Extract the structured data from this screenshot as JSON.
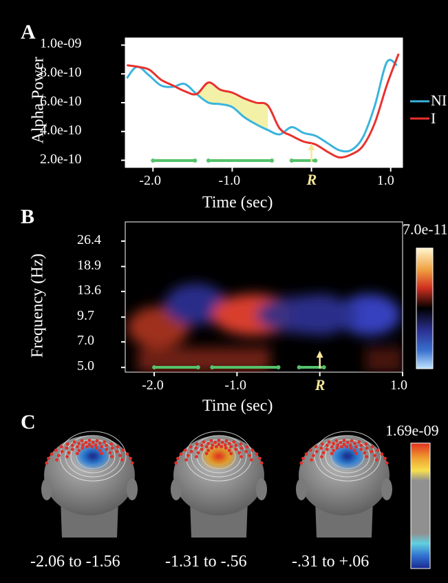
{
  "panel_labels": {
    "a": "A",
    "b": "B",
    "c": "C"
  },
  "r_marker": "R",
  "chart_data": [
    {
      "type": "line",
      "panel": "A",
      "ylabel": "Alpha Power",
      "xlabel": "Time (sec)",
      "ylim": [
        1.5e-10,
        1.05e-09
      ],
      "xlim": [
        -2.35,
        1.15
      ],
      "yticks": [
        "1.0e-09",
        "8.0e-10",
        "6.0e-10",
        "4.0e-10",
        "2.0e-10"
      ],
      "ytick_values": [
        1e-09,
        8e-10,
        6e-10,
        4e-10,
        2e-10
      ],
      "xticks": [
        "-2.0",
        "-1.0",
        "R",
        "1.0"
      ],
      "xtick_values": [
        -2.0,
        -1.0,
        0.0,
        1.0
      ],
      "legend_position": "right",
      "series": [
        {
          "name": "NI",
          "color": "#3ab4dd",
          "x": [
            -2.33,
            -2.2,
            -2.05,
            -1.9,
            -1.75,
            -1.6,
            -1.45,
            -1.3,
            -1.15,
            -1.0,
            -0.85,
            -0.7,
            -0.55,
            -0.4,
            -0.25,
            -0.1,
            0.05,
            0.2,
            0.35,
            0.5,
            0.65,
            0.8,
            0.95,
            1.08
          ],
          "y": [
            7.7e-10,
            8.5e-10,
            7.9e-10,
            7.2e-10,
            7.1e-10,
            7.3e-10,
            6.6e-10,
            6e-10,
            5.9e-10,
            5.7e-10,
            5e-10,
            4.5e-10,
            4.1e-10,
            3.8e-10,
            4.3e-10,
            3.9e-10,
            3.7e-10,
            3.2e-10,
            2.7e-10,
            2.7e-10,
            3.6e-10,
            5.8e-10,
            8.8e-10,
            8.6e-10
          ]
        },
        {
          "name": "I",
          "color": "#e8312d",
          "x": [
            -2.33,
            -2.2,
            -2.05,
            -1.9,
            -1.75,
            -1.6,
            -1.45,
            -1.3,
            -1.15,
            -1.0,
            -0.85,
            -0.7,
            -0.55,
            -0.4,
            -0.25,
            -0.1,
            0.05,
            0.2,
            0.35,
            0.5,
            0.65,
            0.8,
            0.95,
            1.1
          ],
          "y": [
            8.6e-10,
            8.5e-10,
            8.3e-10,
            7.6e-10,
            7.2e-10,
            6.8e-10,
            6.6e-10,
            7.4e-10,
            6.9e-10,
            6.7e-10,
            6.3e-10,
            6e-10,
            5.8e-10,
            4.2e-10,
            3.7e-10,
            3.3e-10,
            3.1e-10,
            2.6e-10,
            2.2e-10,
            2.4e-10,
            3e-10,
            4.6e-10,
            7.2e-10,
            9.4e-10
          ]
        }
      ],
      "highlight_intervals": [
        [
          -2.0,
          -1.47
        ],
        [
          -1.3,
          -0.5
        ],
        [
          -0.25,
          0.05
        ]
      ]
    },
    {
      "type": "heatmap",
      "panel": "B",
      "ylabel": "Frequency (Hz)",
      "xlabel": "Time (sec)",
      "yticks": [
        "26.4",
        "18.9",
        "13.6",
        "9.7",
        "7.0",
        "5.0"
      ],
      "xticks": [
        "-2.0",
        "-1.0",
        "R",
        "1.0"
      ],
      "colorbar_max": "7.0e-11",
      "blobs": [
        {
          "t": -1.95,
          "f": 8.5,
          "sign": 1,
          "strength": 0.55
        },
        {
          "t": -1.5,
          "f": 11.5,
          "sign": -1,
          "strength": 0.7
        },
        {
          "t": -0.8,
          "f": 10.0,
          "sign": 1,
          "strength": 1.0
        },
        {
          "t": 0.0,
          "f": 10.0,
          "sign": -1,
          "strength": 0.6
        },
        {
          "t": 0.6,
          "f": 10.0,
          "sign": -1,
          "strength": 0.75
        }
      ],
      "highlight_intervals": [
        [
          -2.0,
          -1.47
        ],
        [
          -1.3,
          -0.5
        ],
        [
          -0.25,
          0.05
        ]
      ]
    }
  ],
  "topomaps": {
    "colorbar_max": "1.69e-09",
    "items": [
      {
        "label": "-2.06 to -1.56",
        "polarity": "negative"
      },
      {
        "label": "-1.31 to -.56",
        "polarity": "positive"
      },
      {
        "label": "-.31 to +.06",
        "polarity": "negative"
      }
    ]
  },
  "colors": {
    "highlight_fill": "#f3f0a8",
    "interval_bar": "#55c26a",
    "marker": "#f6e79a"
  }
}
